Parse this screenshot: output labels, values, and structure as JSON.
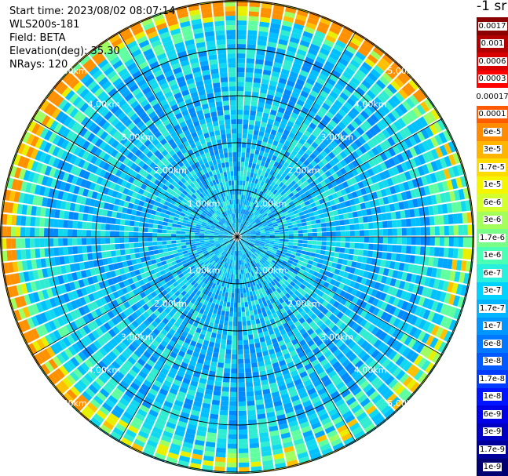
{
  "header": {
    "start_time": "Start time: 2023/08/02 08:07:14",
    "instrument": "WLS200s-181",
    "field": "Field: BETA",
    "elevation": "Elevation(deg): 35.30",
    "nrays": "NRays: 120"
  },
  "colorbar": {
    "unit_label": "-1 sr",
    "entries": [
      {
        "label": "0.0017",
        "color": "#8b0000"
      },
      {
        "label": "0.001",
        "color": "#b20000"
      },
      {
        "label": "0.0006",
        "color": "#d80000"
      },
      {
        "label": "0.0003",
        "color": "#ff0000"
      },
      {
        "label": "0.00017",
        "color": "#ffffff"
      },
      {
        "label": "0.0001",
        "color": "#ff5a00"
      },
      {
        "label": "6e-5",
        "color": "#ff8c00"
      },
      {
        "label": "3e-5",
        "color": "#ffb400"
      },
      {
        "label": "1.7e-5",
        "color": "#ffdc00"
      },
      {
        "label": "1e-5",
        "color": "#f5f500"
      },
      {
        "label": "6e-6",
        "color": "#d2ff2d"
      },
      {
        "label": "3e-6",
        "color": "#a5ff5a"
      },
      {
        "label": "1.7e-6",
        "color": "#78ff87"
      },
      {
        "label": "1e-6",
        "color": "#4bffb4"
      },
      {
        "label": "6e-7",
        "color": "#28f0dc"
      },
      {
        "label": "3e-7",
        "color": "#00d2ff"
      },
      {
        "label": "1.7e-7",
        "color": "#00b4ff"
      },
      {
        "label": "1e-7",
        "color": "#0096ff"
      },
      {
        "label": "6e-8",
        "color": "#0078ff"
      },
      {
        "label": "3e-8",
        "color": "#005aff"
      },
      {
        "label": "1.7e-8",
        "color": "#003cff"
      },
      {
        "label": "1e-8",
        "color": "#0014ff"
      },
      {
        "label": "6e-9",
        "color": "#0000e6"
      },
      {
        "label": "3e-9",
        "color": "#0000c3"
      },
      {
        "label": "1.7e-9",
        "color": "#00009b"
      },
      {
        "label": "1e-9",
        "color": "#000073"
      }
    ]
  },
  "range_rings": {
    "labels": [
      "1.00km",
      "2.00km",
      "3.00km",
      "4.00km",
      "5.00km"
    ],
    "values_km": [
      1,
      2,
      3,
      4,
      5
    ]
  },
  "scan": {
    "rays": 120,
    "palette": [
      "#0040ff",
      "#0066ff",
      "#0088ff",
      "#00a6ff",
      "#00c0ff",
      "#10d8f0",
      "#30ecd0",
      "#60ffa0",
      "#a0ff60",
      "#e8f000",
      "#ffc000",
      "#ff9000"
    ]
  }
}
